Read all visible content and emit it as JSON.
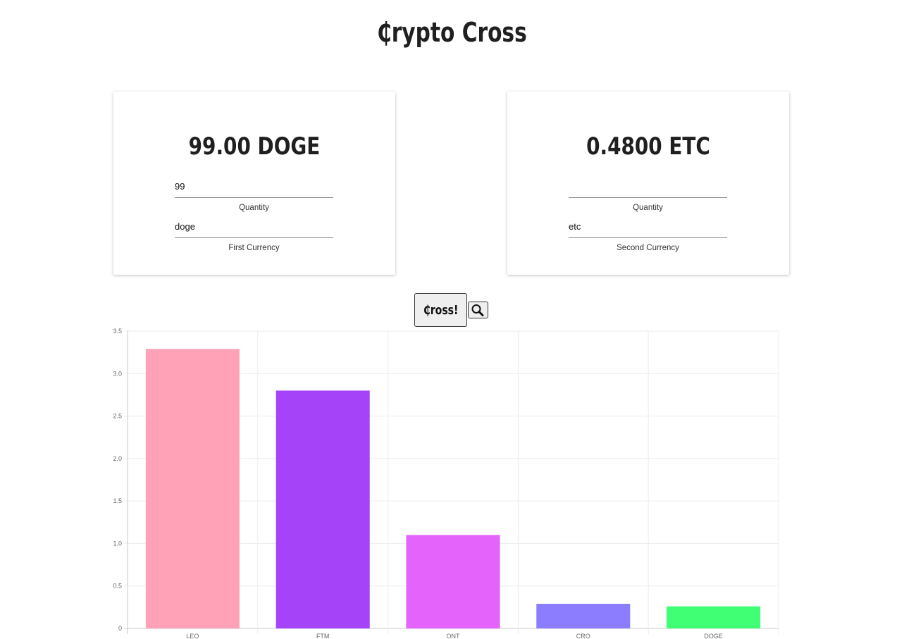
{
  "header": {
    "title": "₵rypto Cross"
  },
  "first_card": {
    "amount": "99.00 DOGE",
    "quantity_value": "99",
    "quantity_label": "Quantity",
    "currency_value": "doge",
    "currency_label": "First Currency"
  },
  "second_card": {
    "amount": "0.4800 ETC",
    "quantity_value": "",
    "quantity_label": "Quantity",
    "currency_value": "etc",
    "currency_label": "Second Currency"
  },
  "actions": {
    "cross_label": "₵ross!",
    "search_icon": "magnifier-icon"
  },
  "chart_data": {
    "type": "bar",
    "categories": [
      "LEO",
      "FTM",
      "ONT",
      "CRO",
      "DOGE"
    ],
    "values": [
      3.29,
      2.8,
      1.1,
      0.29,
      0.26
    ],
    "colors": [
      "#ffa2b8",
      "#a443f7",
      "#e463fb",
      "#8c7dff",
      "#40ff75"
    ],
    "ylim": [
      0,
      3.5
    ],
    "yticks": [
      "0",
      "0.5",
      "1.0",
      "1.5",
      "2.0",
      "2.5",
      "3.0",
      "3.5"
    ],
    "grid": true,
    "title": "",
    "xlabel": "",
    "ylabel": ""
  }
}
